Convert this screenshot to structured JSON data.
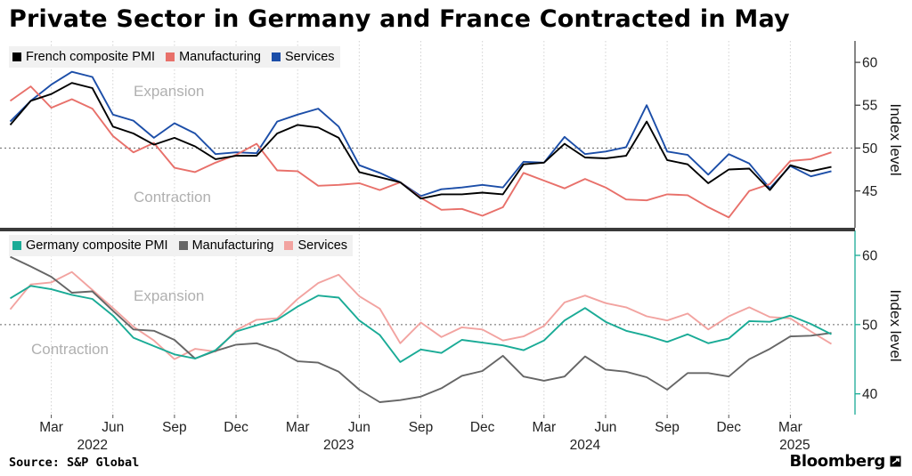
{
  "title": "Private Sector in Germany and France Contracted in May",
  "source": "Source: S&P Global",
  "brand": "Bloomberg",
  "brand_icon": "bloomberg-terminal-icon",
  "x_axis": {
    "month_labels": [
      "Mar",
      "Jun",
      "Sep",
      "Dec",
      "Mar",
      "Jun",
      "Sep",
      "Dec",
      "Mar",
      "Jun",
      "Sep",
      "Dec",
      "Mar"
    ],
    "year_labels": [
      "2022",
      "2023",
      "2024",
      "2025"
    ]
  },
  "chart_data": [
    {
      "type": "line",
      "panel": "France",
      "x": [
        "2022-01",
        "2022-02",
        "2022-03",
        "2022-04",
        "2022-05",
        "2022-06",
        "2022-07",
        "2022-08",
        "2022-09",
        "2022-10",
        "2022-11",
        "2022-12",
        "2023-01",
        "2023-02",
        "2023-03",
        "2023-04",
        "2023-05",
        "2023-06",
        "2023-07",
        "2023-08",
        "2023-09",
        "2023-10",
        "2023-11",
        "2023-12",
        "2024-01",
        "2024-02",
        "2024-03",
        "2024-04",
        "2024-05",
        "2024-06",
        "2024-07",
        "2024-08",
        "2024-09",
        "2024-10",
        "2024-11",
        "2024-12",
        "2025-01",
        "2025-02",
        "2025-03",
        "2025-04",
        "2025-05"
      ],
      "ylabel": "Index level",
      "ylim": [
        40.7,
        62.5
      ],
      "yticks": [
        45,
        50,
        55,
        60
      ],
      "reference_line": 50,
      "annotations": [
        "Expansion",
        "Contraction"
      ],
      "legend_placement": "top-left",
      "grid": "vertical dotted",
      "series": [
        {
          "name": "French composite PMI",
          "color": "#000000",
          "values": [
            52.7,
            55.5,
            56.3,
            57.6,
            57.0,
            52.5,
            51.7,
            50.4,
            51.2,
            50.2,
            48.7,
            49.1,
            49.1,
            51.7,
            52.7,
            52.4,
            51.2,
            47.2,
            46.6,
            46.0,
            44.1,
            44.6,
            44.6,
            44.8,
            44.6,
            48.1,
            48.3,
            50.5,
            48.9,
            48.8,
            49.1,
            53.1,
            48.6,
            48.1,
            45.9,
            47.5,
            47.6,
            45.1,
            48.0,
            47.3,
            47.8
          ]
        },
        {
          "name": "Manufacturing",
          "color": "#e8706a",
          "values": [
            55.5,
            57.2,
            54.7,
            55.7,
            54.6,
            51.4,
            49.5,
            50.6,
            47.7,
            47.2,
            48.3,
            49.2,
            50.5,
            47.4,
            47.3,
            45.6,
            45.7,
            45.9,
            45.1,
            46.0,
            44.2,
            42.8,
            42.9,
            42.1,
            43.1,
            47.1,
            46.2,
            45.3,
            46.4,
            45.4,
            44.0,
            43.9,
            44.6,
            44.5,
            43.1,
            41.9,
            45.0,
            45.8,
            48.5,
            48.7,
            49.5
          ]
        },
        {
          "name": "Services",
          "color": "#1c4ea8",
          "values": [
            53.1,
            55.5,
            57.4,
            58.9,
            58.3,
            53.9,
            53.2,
            51.2,
            52.9,
            51.7,
            49.3,
            49.5,
            49.4,
            53.1,
            53.9,
            54.6,
            52.5,
            48.0,
            47.1,
            46.0,
            44.4,
            45.2,
            45.4,
            45.7,
            45.4,
            48.4,
            48.3,
            51.3,
            49.3,
            49.6,
            50.1,
            55.0,
            49.6,
            49.2,
            46.9,
            49.3,
            48.2,
            45.3,
            47.9,
            46.7,
            47.3
          ]
        }
      ]
    },
    {
      "type": "line",
      "panel": "Germany",
      "x": [
        "2022-01",
        "2022-02",
        "2022-03",
        "2022-04",
        "2022-05",
        "2022-06",
        "2022-07",
        "2022-08",
        "2022-09",
        "2022-10",
        "2022-11",
        "2022-12",
        "2023-01",
        "2023-02",
        "2023-03",
        "2023-04",
        "2023-05",
        "2023-06",
        "2023-07",
        "2023-08",
        "2023-09",
        "2023-10",
        "2023-11",
        "2023-12",
        "2024-01",
        "2024-02",
        "2024-03",
        "2024-04",
        "2024-05",
        "2024-06",
        "2024-07",
        "2024-08",
        "2024-09",
        "2024-10",
        "2024-11",
        "2024-12",
        "2025-01",
        "2025-02",
        "2025-03",
        "2025-04",
        "2025-05"
      ],
      "ylabel": "Index level",
      "ylim": [
        37.0,
        63.6
      ],
      "yticks": [
        40,
        50,
        60
      ],
      "reference_line": 50,
      "annotations": [
        "Expansion",
        "Contraction"
      ],
      "legend_placement": "top-left",
      "grid": "vertical dotted",
      "series": [
        {
          "name": "Germany composite PMI",
          "color": "#1aab96",
          "values": [
            53.8,
            55.6,
            55.1,
            54.3,
            53.7,
            51.3,
            48.1,
            46.9,
            45.7,
            45.1,
            46.3,
            49.0,
            49.9,
            50.7,
            52.6,
            54.2,
            53.9,
            50.6,
            48.5,
            44.6,
            46.4,
            45.9,
            47.8,
            47.4,
            47.0,
            46.3,
            47.7,
            50.6,
            52.4,
            50.4,
            49.1,
            48.4,
            47.5,
            48.6,
            47.3,
            48.0,
            50.5,
            50.4,
            51.3,
            50.1,
            48.6
          ]
        },
        {
          "name": "Manufacturing",
          "color": "#666666",
          "values": [
            59.8,
            58.4,
            56.9,
            54.6,
            54.8,
            52.0,
            49.3,
            49.1,
            47.8,
            45.1,
            46.2,
            47.1,
            47.3,
            46.3,
            44.7,
            44.5,
            43.2,
            40.6,
            38.8,
            39.1,
            39.6,
            40.8,
            42.6,
            43.3,
            45.5,
            42.5,
            41.9,
            42.5,
            45.4,
            43.5,
            43.2,
            42.4,
            40.6,
            43.0,
            43.0,
            42.5,
            45.0,
            46.5,
            48.3,
            48.4,
            48.8
          ]
        },
        {
          "name": "Services",
          "color": "#f2a3a0",
          "values": [
            52.2,
            55.8,
            56.1,
            57.6,
            55.0,
            52.4,
            49.7,
            47.7,
            45.0,
            46.5,
            46.1,
            49.2,
            50.7,
            50.9,
            53.7,
            56.0,
            57.2,
            54.1,
            52.3,
            47.3,
            50.3,
            48.2,
            49.6,
            49.3,
            47.7,
            48.3,
            49.8,
            53.2,
            54.2,
            53.1,
            52.5,
            51.2,
            50.6,
            51.6,
            49.3,
            51.2,
            52.5,
            51.1,
            50.9,
            49.0,
            47.2
          ]
        }
      ]
    }
  ]
}
